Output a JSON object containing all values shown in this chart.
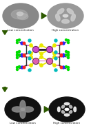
{
  "bg_color": "#ffffff",
  "arrow_color": "#2d5a00",
  "label_low": "Low concentration",
  "label_high": "High concentration",
  "yellow": "#e8e800",
  "pink": "#e060c0",
  "magenta": "#c040a0",
  "blue": "#2222ff",
  "green": "#00dd00",
  "red": "#ff2222",
  "cyan": "#00bbbb",
  "teal": "#008888",
  "black": "#111111",
  "darkgray": "#444444",
  "mol1_metal": "#cc44cc",
  "mol2_metal": "#e060b0",
  "top_left_bg": "#777777",
  "top_right_bg": "#999999",
  "bot_left_bg": "#111111",
  "bot_right_bg": "#111111"
}
